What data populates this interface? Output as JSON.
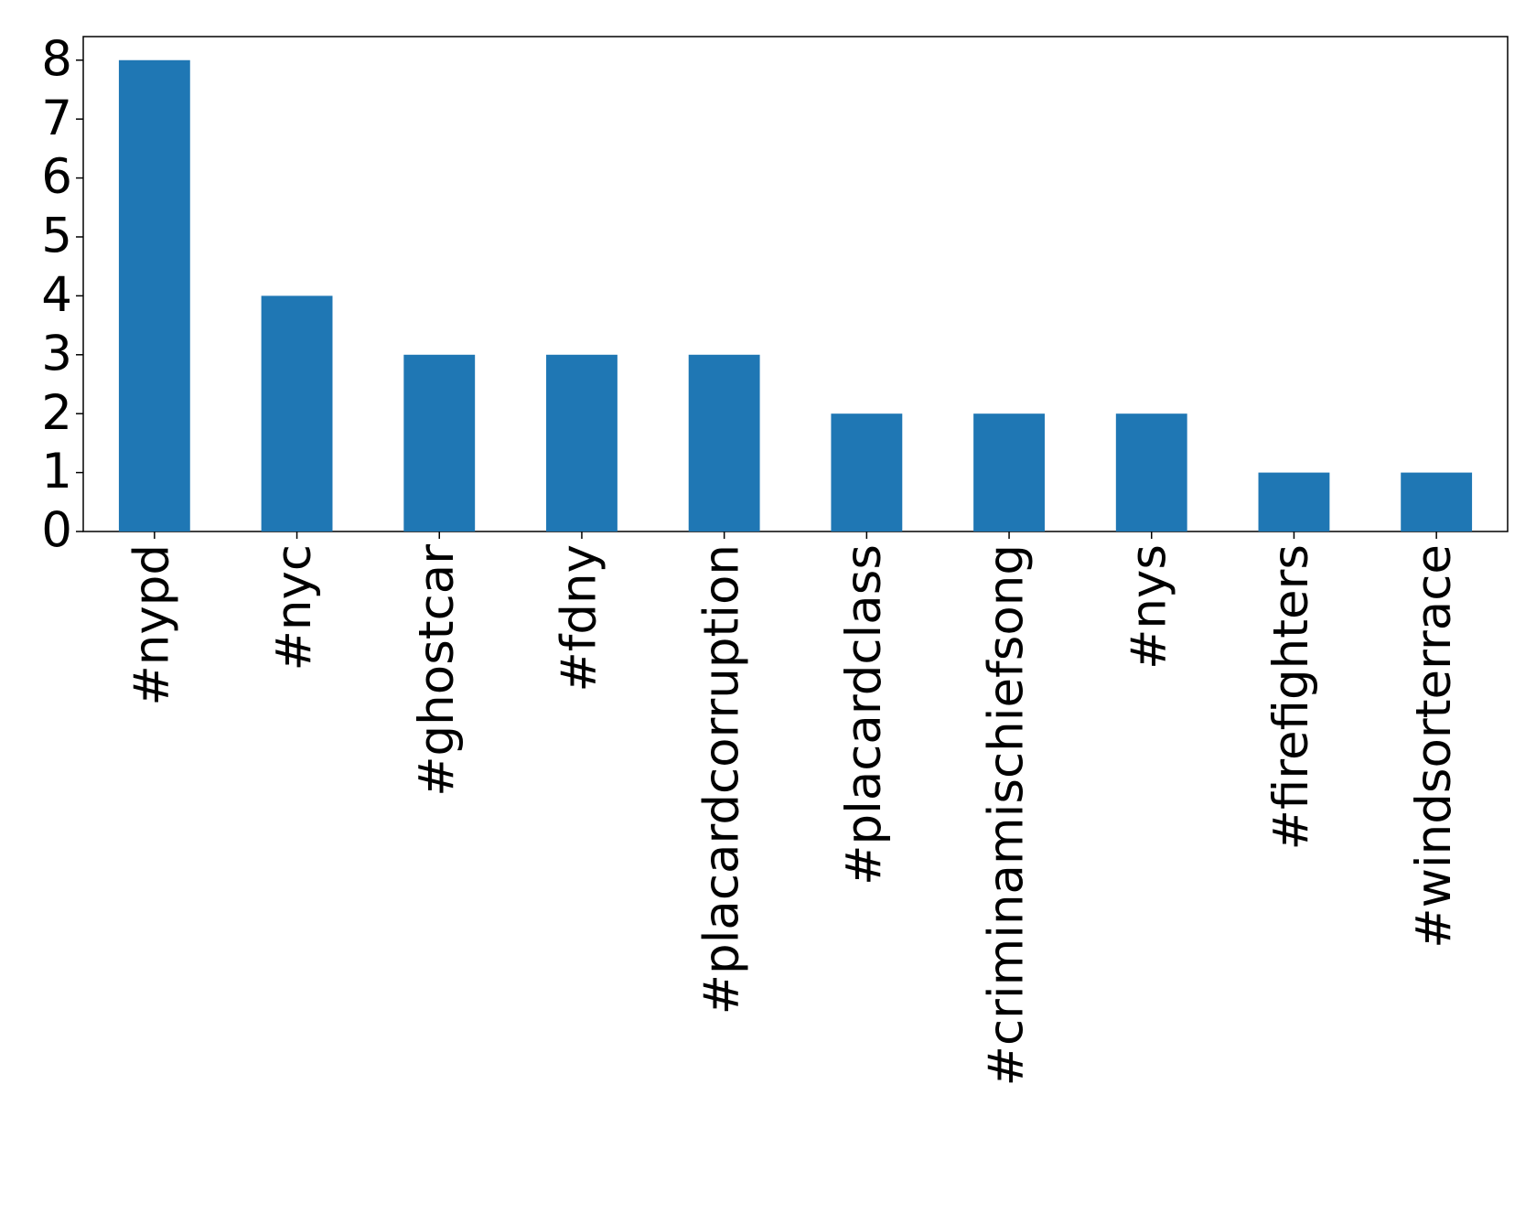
{
  "chart_data": {
    "type": "bar",
    "categories": [
      "#nypd",
      "#nyc",
      "#ghostcar",
      "#fdny",
      "#placardcorruption",
      "#placardclass",
      "#criminamischiefsong",
      "#nys",
      "#firefighters",
      "#windsorterrace"
    ],
    "values": [
      8,
      4,
      3,
      3,
      3,
      2,
      2,
      2,
      1,
      1
    ],
    "color": "#1f77b4",
    "ylim": [
      0,
      8.4
    ],
    "yticks": [
      0,
      1,
      2,
      3,
      4,
      5,
      6,
      7,
      8
    ],
    "grid": false
  }
}
